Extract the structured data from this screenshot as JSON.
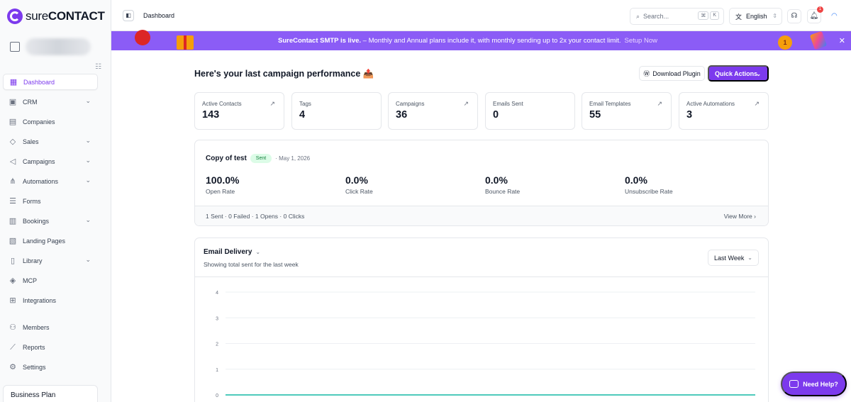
{
  "app": {
    "logo_sure": "sure",
    "logo_contact": "CONTACT"
  },
  "sidebar": {
    "items": [
      {
        "label": "Dashboard"
      },
      {
        "label": "CRM"
      },
      {
        "label": "Companies"
      },
      {
        "label": "Sales"
      },
      {
        "label": "Campaigns"
      },
      {
        "label": "Automations"
      },
      {
        "label": "Forms"
      },
      {
        "label": "Bookings"
      },
      {
        "label": "Landing Pages"
      },
      {
        "label": "Library"
      },
      {
        "label": "MCP"
      },
      {
        "label": "Integrations"
      },
      {
        "label": "Members"
      },
      {
        "label": "Reports"
      },
      {
        "label": "Settings"
      }
    ],
    "plan": "Business Plan"
  },
  "topbar": {
    "title": "Dashboard",
    "search_placeholder": "Search...",
    "kbd_cmd": "⌘",
    "kbd_k": "K",
    "language": "English",
    "notification_count": "1"
  },
  "banner": {
    "headline": "SureContact SMTP is live.",
    "body": " – Monthly and Annual plans include it, with monthly sending up to 2x your contact limit.",
    "cta": "Setup Now",
    "medal": "1"
  },
  "main": {
    "title": "Here's your last campaign performance 📤",
    "download_label": "Download Plugin",
    "quick_actions_label": "Quick Actions",
    "stats": [
      {
        "label": "Active Contacts",
        "value": "143"
      },
      {
        "label": "Tags",
        "value": "4"
      },
      {
        "label": "Campaigns",
        "value": "36"
      },
      {
        "label": "Emails Sent",
        "value": "0"
      },
      {
        "label": "Email Templates",
        "value": "55"
      },
      {
        "label": "Active Automations",
        "value": "3"
      }
    ],
    "campaign": {
      "title": "Copy of test",
      "status": "Sent",
      "date": "· May 1, 2026",
      "metrics": [
        {
          "value": "100.0%",
          "label": "Open Rate"
        },
        {
          "value": "0.0%",
          "label": "Click Rate"
        },
        {
          "value": "0.0%",
          "label": "Bounce Rate"
        },
        {
          "value": "0.0%",
          "label": "Unsubscribe Rate"
        }
      ],
      "summary": "1 Sent · 0 Failed · 1 Opens · 0 Clicks",
      "view_more": "View More"
    },
    "delivery": {
      "title": "Email Delivery",
      "subtitle": "Showing total sent for the last week",
      "range": "Last Week"
    }
  },
  "help": {
    "label": "Need Help?"
  },
  "colors": {
    "accent": "#7c3aed",
    "banner": "#8b5cf6",
    "line": "#14b8a6"
  },
  "chart_data": {
    "type": "line",
    "title": "",
    "xlabel": "",
    "ylabel": "",
    "yticks": [
      "4",
      "3",
      "2",
      "1",
      "0"
    ],
    "ylim": [
      0,
      4
    ],
    "grid": true,
    "series": [
      {
        "values": [
          0,
          0,
          0,
          0,
          0,
          0,
          0
        ]
      }
    ]
  }
}
